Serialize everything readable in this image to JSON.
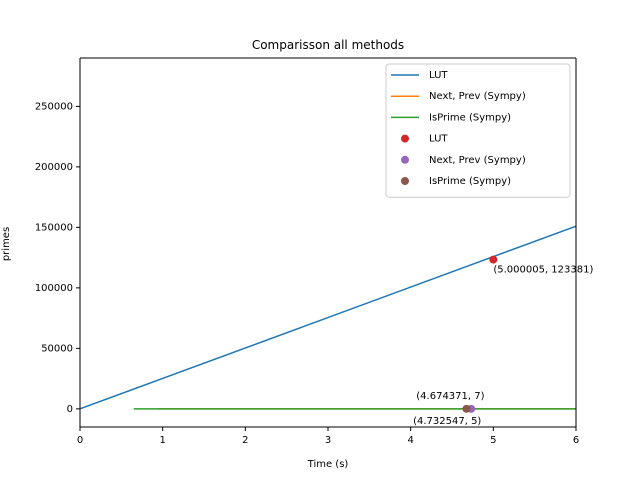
{
  "chart_data": {
    "type": "line",
    "title": "Comparisson all methods",
    "xlabel": "Time (s)",
    "ylabel": "primes",
    "xlim": [
      0,
      6
    ],
    "ylim": [
      -15000,
      290000
    ],
    "xticks": [
      0,
      1,
      2,
      3,
      4,
      5,
      6
    ],
    "yticks": [
      0,
      50000,
      100000,
      150000,
      200000,
      250000
    ],
    "grid": false,
    "legend_position": "top-right",
    "series": [
      {
        "name": "LUT",
        "kind": "line",
        "color": "#1f77b4",
        "x": [
          0,
          6
        ],
        "y": [
          0,
          151000
        ]
      },
      {
        "name": "Next, Prev (Sympy)",
        "kind": "line",
        "color": "#ff7f0e",
        "x": [
          0.95,
          6
        ],
        "y": [
          0,
          0
        ]
      },
      {
        "name": "IsPrime (Sympy)",
        "kind": "line",
        "color": "#2ca02c",
        "x": [
          0.65,
          6
        ],
        "y": [
          0,
          0
        ]
      }
    ],
    "markers": [
      {
        "name": "LUT",
        "color": "#d62728",
        "x": 5.000005,
        "y": 123381,
        "label": "(5.000005, 123381)"
      },
      {
        "name": "Next, Prev (Sympy)",
        "color": "#9467bd",
        "x": 4.732547,
        "y": 5,
        "label": "(4.732547, 5)"
      },
      {
        "name": "IsPrime (Sympy)",
        "color": "#8c564b",
        "x": 4.674371,
        "y": 7,
        "label": "(4.674371, 7)"
      }
    ]
  }
}
